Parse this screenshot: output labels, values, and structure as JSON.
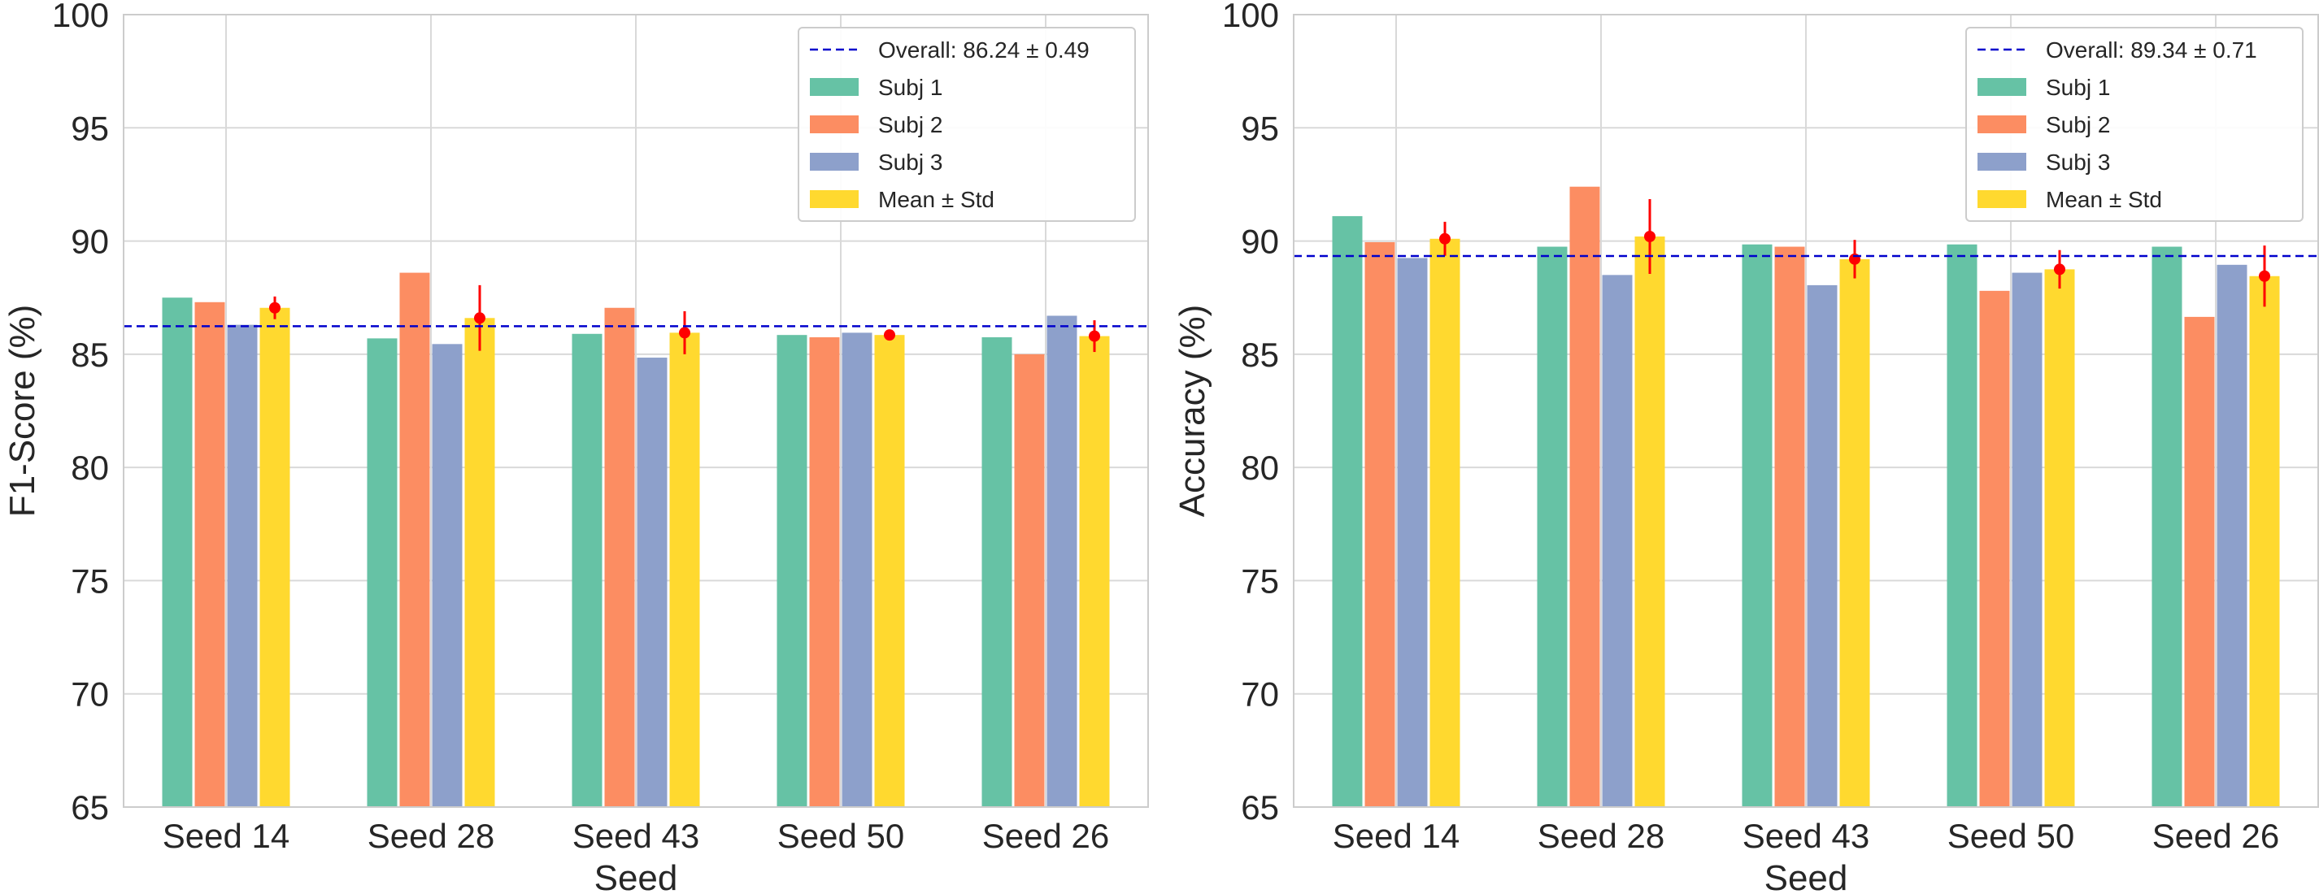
{
  "chart_data": [
    {
      "type": "bar",
      "title": "",
      "xlabel": "Seed",
      "ylabel": "F1-Score (%)",
      "ylim": [
        65,
        100
      ],
      "yticks": [
        65,
        70,
        75,
        80,
        85,
        90,
        95,
        100
      ],
      "grid": true,
      "legend_position": "top-right",
      "categories": [
        "Seed 14",
        "Seed 28",
        "Seed 43",
        "Seed 50",
        "Seed 26"
      ],
      "series": [
        {
          "name": "Subj 1",
          "color": "#66c2a5",
          "values": [
            87.5,
            85.7,
            85.9,
            85.85,
            85.75
          ]
        },
        {
          "name": "Subj 2",
          "color": "#fc8d62",
          "values": [
            87.3,
            88.6,
            87.05,
            85.75,
            85.0
          ]
        },
        {
          "name": "Subj 3",
          "color": "#8da0cb",
          "values": [
            86.3,
            85.45,
            84.85,
            85.95,
            86.7
          ]
        },
        {
          "name": "Mean ± Std",
          "color": "#ffd92f",
          "values": [
            87.05,
            86.6,
            85.95,
            85.85,
            85.8
          ],
          "errors": [
            0.5,
            1.45,
            0.95,
            0.1,
            0.7
          ]
        }
      ],
      "reference_line": {
        "label": "Overall: 86.24 ± 0.49",
        "value": 86.24,
        "color": "#0000cc"
      },
      "error_color": "#ff0000"
    },
    {
      "type": "bar",
      "title": "",
      "xlabel": "Seed",
      "ylabel": "Accuracy (%)",
      "ylim": [
        65,
        100
      ],
      "yticks": [
        65,
        70,
        75,
        80,
        85,
        90,
        95,
        100
      ],
      "grid": true,
      "legend_position": "top-right",
      "categories": [
        "Seed 14",
        "Seed 28",
        "Seed 43",
        "Seed 50",
        "Seed 26"
      ],
      "series": [
        {
          "name": "Subj 1",
          "color": "#66c2a5",
          "values": [
            91.1,
            89.75,
            89.85,
            89.85,
            89.75
          ]
        },
        {
          "name": "Subj 2",
          "color": "#fc8d62",
          "values": [
            89.95,
            92.4,
            89.75,
            87.8,
            86.65
          ]
        },
        {
          "name": "Subj 3",
          "color": "#8da0cb",
          "values": [
            89.25,
            88.5,
            88.05,
            88.6,
            88.95
          ]
        },
        {
          "name": "Mean ± Std",
          "color": "#ffd92f",
          "values": [
            90.1,
            90.2,
            89.2,
            88.75,
            88.45
          ],
          "errors": [
            0.75,
            1.65,
            0.85,
            0.85,
            1.35
          ]
        }
      ],
      "reference_line": {
        "label": "Overall: 89.34 ± 0.71",
        "value": 89.34,
        "color": "#0000cc"
      },
      "error_color": "#ff0000"
    }
  ]
}
